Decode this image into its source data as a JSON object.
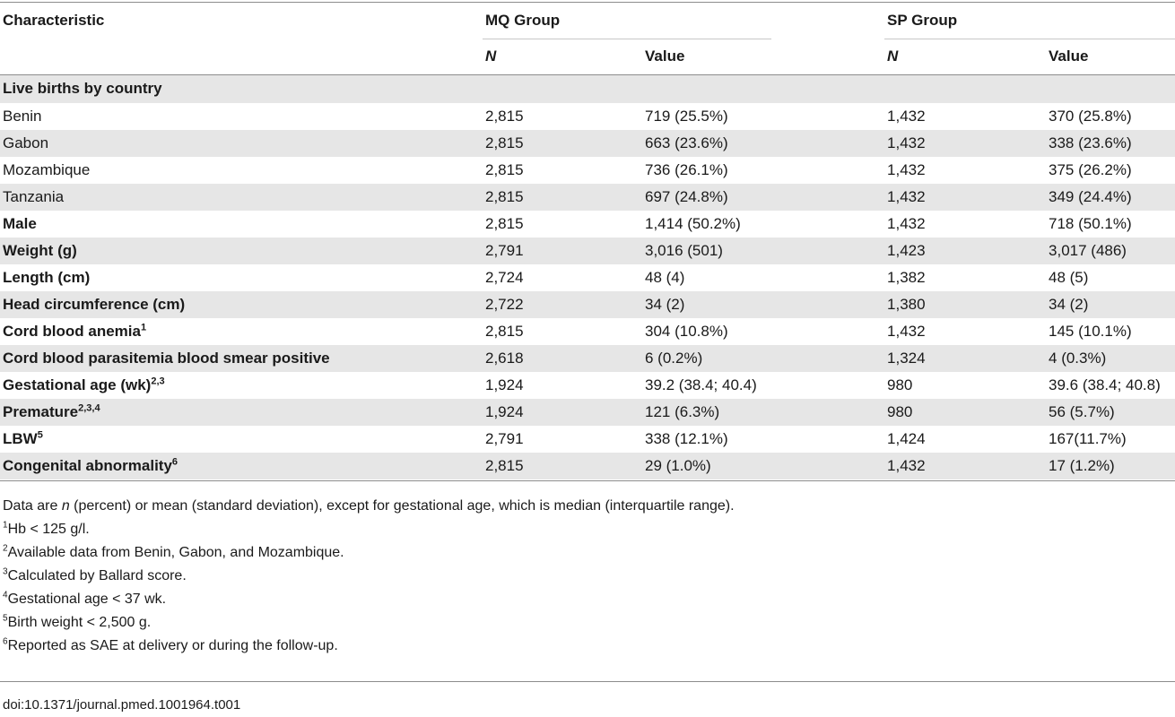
{
  "header": {
    "characteristic": "Characteristic",
    "group_a": "MQ Group",
    "group_b": "SP Group",
    "n_label": "N",
    "value_label": "Value"
  },
  "rows": [
    {
      "label": "Live births by country",
      "kind": "section",
      "shade": true
    },
    {
      "label": "Benin",
      "kind": "plain",
      "shade": false,
      "mq_n": "2,815",
      "mq_value": "719 (25.5%)",
      "sp_n": "1,432",
      "sp_value": "370 (25.8%)"
    },
    {
      "label": "Gabon",
      "kind": "plain",
      "shade": true,
      "mq_n": "2,815",
      "mq_value": "663 (23.6%)",
      "sp_n": "1,432",
      "sp_value": "338 (23.6%)"
    },
    {
      "label": "Mozambique",
      "kind": "plain",
      "shade": false,
      "mq_n": "2,815",
      "mq_value": "736 (26.1%)",
      "sp_n": "1,432",
      "sp_value": "375 (26.2%)"
    },
    {
      "label": "Tanzania",
      "kind": "plain",
      "shade": true,
      "mq_n": "2,815",
      "mq_value": "697 (24.8%)",
      "sp_n": "1,432",
      "sp_value": "349 (24.4%)"
    },
    {
      "label": "Male",
      "kind": "bold",
      "shade": false,
      "mq_n": "2,815",
      "mq_value": "1,414 (50.2%)",
      "sp_n": "1,432",
      "sp_value": "718 (50.1%)"
    },
    {
      "label": "Weight (g)",
      "kind": "bold",
      "shade": true,
      "mq_n": "2,791",
      "mq_value": "3,016 (501)",
      "sp_n": "1,423",
      "sp_value": "3,017 (486)"
    },
    {
      "label": "Length (cm)",
      "kind": "bold",
      "shade": false,
      "mq_n": "2,724",
      "mq_value": "48 (4)",
      "sp_n": "1,382",
      "sp_value": "48 (5)"
    },
    {
      "label": "Head circumference (cm)",
      "kind": "bold",
      "shade": true,
      "mq_n": "2,722",
      "mq_value": "34 (2)",
      "sp_n": "1,380",
      "sp_value": "34 (2)"
    },
    {
      "label": "Cord blood anemia",
      "sup": "1",
      "kind": "bold",
      "shade": false,
      "mq_n": "2,815",
      "mq_value": "304 (10.8%)",
      "sp_n": "1,432",
      "sp_value": "145 (10.1%)"
    },
    {
      "label": "Cord blood parasitemia blood smear positive",
      "kind": "bold",
      "shade": true,
      "mq_n": "2,618",
      "mq_value": "6 (0.2%)",
      "sp_n": "1,324",
      "sp_value": "4 (0.3%)"
    },
    {
      "label": "Gestational age (wk)",
      "sup": "2,3",
      "kind": "bold",
      "shade": false,
      "mq_n": "1,924",
      "mq_value": "39.2 (38.4; 40.4)",
      "sp_n": "980",
      "sp_value": "39.6 (38.4; 40.8)"
    },
    {
      "label": "Premature",
      "sup": "2,3,4",
      "kind": "bold",
      "shade": true,
      "mq_n": "1,924",
      "mq_value": "121 (6.3%)",
      "sp_n": "980",
      "sp_value": "56 (5.7%)"
    },
    {
      "label": "LBW",
      "sup": "5",
      "kind": "bold",
      "shade": false,
      "mq_n": "2,791",
      "mq_value": "338 (12.1%)",
      "sp_n": "1,424",
      "sp_value": "167(11.7%)"
    },
    {
      "label": "Congenital abnormality",
      "sup": "6",
      "kind": "bold",
      "shade": true,
      "mq_n": "2,815",
      "mq_value": "29 (1.0%)",
      "sp_n": "1,432",
      "sp_value": "17 (1.2%)"
    }
  ],
  "notes": {
    "intro_before": "Data are ",
    "intro_italic": "n",
    "intro_after": " (percent) or mean (standard deviation), except for gestational age, which is median (interquartile range).",
    "items": [
      {
        "sup": "1",
        "text": "Hb < 125 g/l."
      },
      {
        "sup": "2",
        "text": "Available data from Benin, Gabon, and Mozambique."
      },
      {
        "sup": "3",
        "text": "Calculated by Ballard score."
      },
      {
        "sup": "4",
        "text": "Gestational age < 37 wk."
      },
      {
        "sup": "5",
        "text": "Birth weight < 2,500 g."
      },
      {
        "sup": "6",
        "text": "Reported as SAE at delivery or during the follow-up."
      }
    ]
  },
  "doi": "doi:10.1371/journal.pmed.1001964.t001"
}
